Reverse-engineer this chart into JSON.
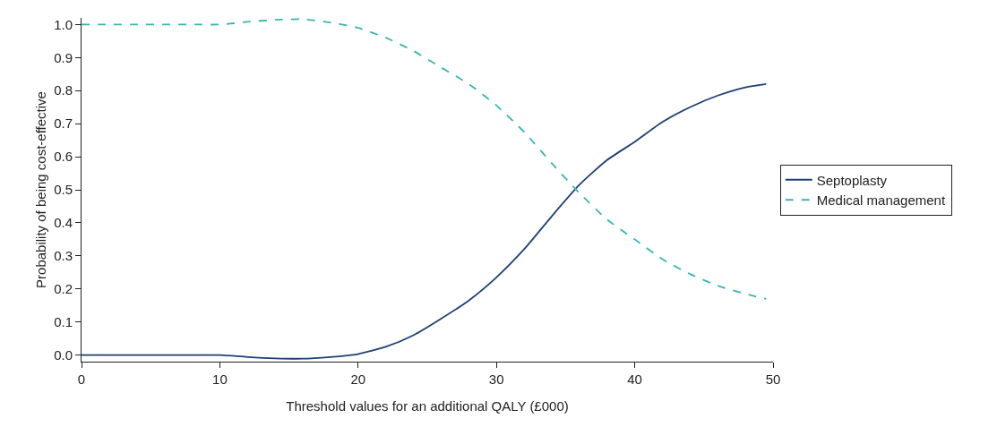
{
  "chart_data": {
    "type": "line",
    "xlabel": "Threshold values for an additional QALY (£000)",
    "ylabel": "Probability of being cost-effective",
    "xlim": [
      0,
      50
    ],
    "xticks": [
      0,
      10,
      20,
      30,
      40,
      50
    ],
    "ylim": [
      -0.02,
      1.02
    ],
    "yticks": [
      {
        "value": 0,
        "label": "0.0"
      },
      0.1,
      0.2,
      0.3,
      0.4,
      0.5,
      0.6,
      0.7,
      0.8,
      0.9,
      {
        "value": 1,
        "label": "1.0"
      }
    ],
    "x": [
      0,
      2,
      4,
      6,
      8,
      10,
      12,
      14,
      16,
      18,
      19.5,
      20,
      22,
      24,
      26,
      28,
      30,
      32,
      34,
      36,
      38,
      40,
      42,
      44,
      46,
      48,
      49.5
    ],
    "series": [
      {
        "name": "Septoplasty",
        "color": "#1f3f73",
        "line_style": "solid",
        "values": [
          0,
          0,
          0,
          0,
          0,
          0,
          -0.006,
          -0.01,
          -0.011,
          -0.006,
          0,
          0.003,
          0.025,
          0.06,
          0.11,
          0.165,
          0.235,
          0.32,
          0.42,
          0.515,
          0.59,
          0.645,
          0.705,
          0.75,
          0.785,
          0.81,
          0.82
        ]
      },
      {
        "name": "Medical management",
        "color": "#3bb3b3",
        "line_style": "dashed",
        "values": [
          1,
          1,
          1,
          1,
          1,
          1,
          1.008,
          1.014,
          1.016,
          1.006,
          0.995,
          0.99,
          0.96,
          0.92,
          0.87,
          0.82,
          0.755,
          0.675,
          0.58,
          0.49,
          0.41,
          0.35,
          0.29,
          0.245,
          0.21,
          0.185,
          0.17
        ]
      }
    ],
    "grid": false,
    "legend": "right",
    "marker": "none"
  }
}
